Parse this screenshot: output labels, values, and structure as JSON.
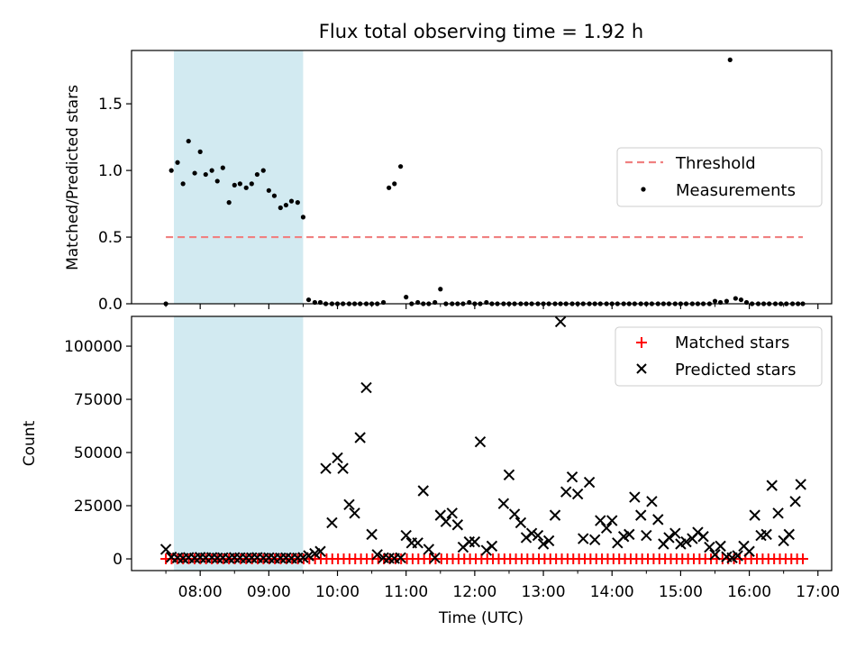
{
  "chart_data": {
    "type": "scatter",
    "title": "Flux total observing time = 1.92 h",
    "colors": {
      "shade": "#add8e6",
      "threshold": "#f08080",
      "measurement": "#000000",
      "matched": "#ff0000",
      "predicted": "#000000"
    },
    "shaded_interval": {
      "x0": 7.617,
      "x1": 9.5
    },
    "x_axis": {
      "label": "Time (UTC)",
      "range": [
        7.0,
        17.2
      ],
      "ticks": [
        {
          "value": 8,
          "label": "08:00"
        },
        {
          "value": 9,
          "label": "09:00"
        },
        {
          "value": 10,
          "label": "10:00"
        },
        {
          "value": 11,
          "label": "11:00"
        },
        {
          "value": 12,
          "label": "12:00"
        },
        {
          "value": 13,
          "label": "13:00"
        },
        {
          "value": 14,
          "label": "14:00"
        },
        {
          "value": 15,
          "label": "15:00"
        },
        {
          "value": 16,
          "label": "16:00"
        },
        {
          "value": 17,
          "label": "17:00"
        }
      ],
      "minor_ticks": [
        7.5,
        8.5,
        9.5,
        10.5,
        11.5,
        12.5,
        13.5,
        14.5,
        15.5,
        16.5
      ]
    },
    "top": {
      "ylabel": "Matched/Predicted stars",
      "ylim": [
        0,
        1.9
      ],
      "yticks": [
        {
          "value": 0,
          "label": "0.0"
        },
        {
          "value": 0.5,
          "label": "0.5"
        },
        {
          "value": 1.0,
          "label": "1.0"
        },
        {
          "value": 1.5,
          "label": "1.5"
        }
      ],
      "threshold": {
        "value": 0.5,
        "x": [
          7.5,
          16.78
        ]
      },
      "legend": [
        {
          "name": "Threshold",
          "marker": "dash"
        },
        {
          "name": "Measurements",
          "marker": "dot"
        }
      ],
      "measurements": [
        [
          7.5,
          0.0
        ],
        [
          7.58,
          1.0
        ],
        [
          7.67,
          1.06
        ],
        [
          7.75,
          0.9
        ],
        [
          7.83,
          1.22
        ],
        [
          7.92,
          0.98
        ],
        [
          8.0,
          1.14
        ],
        [
          8.08,
          0.97
        ],
        [
          8.17,
          1.0
        ],
        [
          8.25,
          0.92
        ],
        [
          8.33,
          1.02
        ],
        [
          8.42,
          0.76
        ],
        [
          8.5,
          0.89
        ],
        [
          8.58,
          0.9
        ],
        [
          8.67,
          0.87
        ],
        [
          8.75,
          0.9
        ],
        [
          8.83,
          0.97
        ],
        [
          8.92,
          1.0
        ],
        [
          9.0,
          0.85
        ],
        [
          9.08,
          0.81
        ],
        [
          9.17,
          0.72
        ],
        [
          9.25,
          0.74
        ],
        [
          9.33,
          0.77
        ],
        [
          9.42,
          0.76
        ],
        [
          9.5,
          0.65
        ],
        [
          9.58,
          0.03
        ],
        [
          9.67,
          0.01
        ],
        [
          9.75,
          0.01
        ],
        [
          9.83,
          0.0
        ],
        [
          9.92,
          0.0
        ],
        [
          10.0,
          0.0
        ],
        [
          10.08,
          0.0
        ],
        [
          10.17,
          0.0
        ],
        [
          10.25,
          0.0
        ],
        [
          10.33,
          0.0
        ],
        [
          10.42,
          0.0
        ],
        [
          10.5,
          0.0
        ],
        [
          10.58,
          0.0
        ],
        [
          10.67,
          0.01
        ],
        [
          10.75,
          0.87
        ],
        [
          10.83,
          0.9
        ],
        [
          10.92,
          1.03
        ],
        [
          11.0,
          0.05
        ],
        [
          11.08,
          0.0
        ],
        [
          11.17,
          0.01
        ],
        [
          11.25,
          0.0
        ],
        [
          11.33,
          0.0
        ],
        [
          11.42,
          0.01
        ],
        [
          11.5,
          0.11
        ],
        [
          11.58,
          0.0
        ],
        [
          11.67,
          0.0
        ],
        [
          11.75,
          0.0
        ],
        [
          11.83,
          0.0
        ],
        [
          11.92,
          0.01
        ],
        [
          12.0,
          0.0
        ],
        [
          12.08,
          0.0
        ],
        [
          12.17,
          0.01
        ],
        [
          12.25,
          0.0
        ],
        [
          12.33,
          0.0
        ],
        [
          12.42,
          0.0
        ],
        [
          12.5,
          0.0
        ],
        [
          12.58,
          0.0
        ],
        [
          12.67,
          0.0
        ],
        [
          12.75,
          0.0
        ],
        [
          12.83,
          0.0
        ],
        [
          12.92,
          0.0
        ],
        [
          13.0,
          0.0
        ],
        [
          13.08,
          0.0
        ],
        [
          13.17,
          0.0
        ],
        [
          13.25,
          0.0
        ],
        [
          13.33,
          0.0
        ],
        [
          13.42,
          0.0
        ],
        [
          13.5,
          0.0
        ],
        [
          13.58,
          0.0
        ],
        [
          13.67,
          0.0
        ],
        [
          13.75,
          0.0
        ],
        [
          13.83,
          0.0
        ],
        [
          13.92,
          0.0
        ],
        [
          14.0,
          0.0
        ],
        [
          14.08,
          0.0
        ],
        [
          14.17,
          0.0
        ],
        [
          14.25,
          0.0
        ],
        [
          14.33,
          0.0
        ],
        [
          14.42,
          0.0
        ],
        [
          14.5,
          0.0
        ],
        [
          14.58,
          0.0
        ],
        [
          14.67,
          0.0
        ],
        [
          14.75,
          0.0
        ],
        [
          14.83,
          0.0
        ],
        [
          14.92,
          0.0
        ],
        [
          15.0,
          0.0
        ],
        [
          15.08,
          0.0
        ],
        [
          15.17,
          0.0
        ],
        [
          15.25,
          0.0
        ],
        [
          15.33,
          0.0
        ],
        [
          15.42,
          0.0
        ],
        [
          15.5,
          0.02
        ],
        [
          15.58,
          0.01
        ],
        [
          15.67,
          0.02
        ],
        [
          15.72,
          1.83
        ],
        [
          15.8,
          0.04
        ],
        [
          15.88,
          0.03
        ],
        [
          15.96,
          0.01
        ],
        [
          16.04,
          0.0
        ],
        [
          16.13,
          0.0
        ],
        [
          16.21,
          0.0
        ],
        [
          16.29,
          0.0
        ],
        [
          16.38,
          0.0
        ],
        [
          16.46,
          0.0
        ],
        [
          16.54,
          0.0
        ],
        [
          16.63,
          0.0
        ],
        [
          16.71,
          0.0
        ],
        [
          16.78,
          0.0
        ]
      ]
    },
    "bottom": {
      "ylabel": "Count",
      "ylim": [
        -5500,
        114000
      ],
      "yticks": [
        {
          "value": 0,
          "label": "0"
        },
        {
          "value": 25000,
          "label": "25000"
        },
        {
          "value": 50000,
          "label": "50000"
        },
        {
          "value": 75000,
          "label": "75000"
        },
        {
          "value": 100000,
          "label": "100000"
        }
      ],
      "legend": [
        {
          "name": "Matched stars",
          "marker": "plus"
        },
        {
          "name": "Predicted stars",
          "marker": "x"
        }
      ],
      "matched_x_start": 7.5,
      "matched_x_end": 16.78,
      "matched_x_step": 0.0833,
      "matched_value": 0,
      "predicted": [
        [
          7.5,
          4500
        ],
        [
          7.58,
          800
        ],
        [
          7.67,
          500
        ],
        [
          7.75,
          300
        ],
        [
          7.83,
          600
        ],
        [
          7.92,
          400
        ],
        [
          8.0,
          700
        ],
        [
          8.08,
          500
        ],
        [
          8.17,
          600
        ],
        [
          8.25,
          400
        ],
        [
          8.33,
          500
        ],
        [
          8.42,
          300
        ],
        [
          8.5,
          600
        ],
        [
          8.58,
          500
        ],
        [
          8.67,
          400
        ],
        [
          8.75,
          500
        ],
        [
          8.83,
          600
        ],
        [
          8.92,
          400
        ],
        [
          9.0,
          500
        ],
        [
          9.08,
          300
        ],
        [
          9.17,
          400
        ],
        [
          9.25,
          500
        ],
        [
          9.33,
          300
        ],
        [
          9.42,
          400
        ],
        [
          9.5,
          600
        ],
        [
          9.58,
          1500
        ],
        [
          9.67,
          2500
        ],
        [
          9.75,
          3500
        ],
        [
          9.83,
          42500
        ],
        [
          9.92,
          17000
        ],
        [
          10.0,
          47500
        ],
        [
          10.08,
          42500
        ],
        [
          10.17,
          25500
        ],
        [
          10.25,
          21500
        ],
        [
          10.33,
          57000
        ],
        [
          10.42,
          80500
        ],
        [
          10.5,
          11500
        ],
        [
          10.58,
          2000
        ],
        [
          10.67,
          500
        ],
        [
          10.75,
          300
        ],
        [
          10.83,
          200
        ],
        [
          10.92,
          500
        ],
        [
          11.0,
          11000
        ],
        [
          11.08,
          7500
        ],
        [
          11.17,
          7500
        ],
        [
          11.25,
          32000
        ],
        [
          11.33,
          4500
        ],
        [
          11.42,
          500
        ],
        [
          11.5,
          20500
        ],
        [
          11.58,
          17500
        ],
        [
          11.67,
          21500
        ],
        [
          11.75,
          16000
        ],
        [
          11.83,
          5500
        ],
        [
          11.92,
          8000
        ],
        [
          12.0,
          8000
        ],
        [
          12.08,
          55000
        ],
        [
          12.17,
          4000
        ],
        [
          12.25,
          6000
        ],
        [
          12.42,
          26000
        ],
        [
          12.5,
          39500
        ],
        [
          12.58,
          21000
        ],
        [
          12.67,
          17000
        ],
        [
          12.75,
          10000
        ],
        [
          12.83,
          12000
        ],
        [
          12.92,
          11000
        ],
        [
          13.0,
          7000
        ],
        [
          13.08,
          8500
        ],
        [
          13.17,
          20500
        ],
        [
          13.25,
          111500
        ],
        [
          13.33,
          31500
        ],
        [
          13.42,
          38500
        ],
        [
          13.5,
          30500
        ],
        [
          13.58,
          9500
        ],
        [
          13.67,
          36000
        ],
        [
          13.75,
          9000
        ],
        [
          13.83,
          18000
        ],
        [
          13.92,
          14500
        ],
        [
          14.0,
          18000
        ],
        [
          14.08,
          7500
        ],
        [
          14.17,
          10500
        ],
        [
          14.25,
          11500
        ],
        [
          14.33,
          29000
        ],
        [
          14.42,
          20500
        ],
        [
          14.5,
          11000
        ],
        [
          14.58,
          27000
        ],
        [
          14.67,
          18500
        ],
        [
          14.75,
          7000
        ],
        [
          14.83,
          10000
        ],
        [
          14.92,
          12000
        ],
        [
          15.0,
          7000
        ],
        [
          15.08,
          8000
        ],
        [
          15.17,
          9500
        ],
        [
          15.25,
          12500
        ],
        [
          15.33,
          10500
        ],
        [
          15.42,
          5500
        ],
        [
          15.5,
          2000
        ],
        [
          15.58,
          6000
        ],
        [
          15.67,
          1000
        ],
        [
          15.75,
          500
        ],
        [
          15.83,
          1500
        ],
        [
          15.92,
          6000
        ],
        [
          16.0,
          3500
        ],
        [
          16.08,
          20500
        ],
        [
          16.17,
          11000
        ],
        [
          16.25,
          11500
        ],
        [
          16.33,
          34500
        ],
        [
          16.42,
          21500
        ],
        [
          16.5,
          8500
        ],
        [
          16.58,
          11500
        ],
        [
          16.67,
          27000
        ],
        [
          16.75,
          35000
        ]
      ]
    }
  }
}
